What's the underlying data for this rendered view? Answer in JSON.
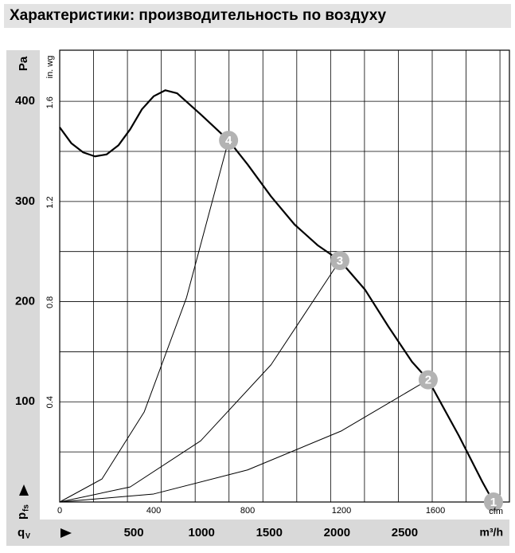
{
  "chart_data": {
    "type": "line",
    "title": "Характеристики: производительность по воздуху",
    "y_label": "Pa",
    "y2_label": "in. wg",
    "y_symbol": "p",
    "y_symbol_sub": "fs",
    "x_symbol": "q",
    "x_symbol_sub": "V",
    "x_label": "cfm",
    "x2_label": "m³/h",
    "xlim": [
      0,
      1915
    ],
    "xticks": [
      0,
      400,
      800,
      1200,
      1600
    ],
    "x2lim": [
      0,
      3320
    ],
    "x2ticks": [
      500,
      1000,
      1500,
      2000,
      2500
    ],
    "x2grid": [
      250,
      500,
      750,
      1000,
      1250,
      1500,
      1750,
      2000,
      2250,
      2500,
      2750,
      3000,
      3250
    ],
    "ylim": [
      0,
      451
    ],
    "yticks": [
      100,
      200,
      300,
      400
    ],
    "ygrid": [
      50,
      100,
      150,
      200,
      250,
      300,
      350,
      400
    ],
    "y2lim": [
      0,
      1.81
    ],
    "y2ticks": [
      0.4,
      0.8,
      1.2,
      1.6
    ],
    "series": [
      {
        "color": "#000000",
        "width": 2.2,
        "x": [
          0,
          50,
          100,
          150,
          200,
          250,
          300,
          350,
          400,
          450,
          500,
          600,
          719,
          800,
          900,
          1000,
          1100,
          1193,
          1300,
          1400,
          1500,
          1569,
          1700,
          1800,
          1847
        ],
        "values": [
          374,
          358,
          349,
          345,
          347,
          356,
          372,
          392,
          405,
          411,
          408,
          387,
          361,
          337,
          305,
          277,
          256,
          241,
          212,
          175,
          140,
          122,
          66,
          20,
          0
        ]
      },
      {
        "color": "#000000",
        "width": 1,
        "x": [
          0,
          180,
          360,
          540,
          719
        ],
        "values": [
          0,
          23,
          90,
          204,
          361
        ]
      },
      {
        "color": "#000000",
        "width": 1,
        "x": [
          0,
          300,
          600,
          900,
          1193
        ],
        "values": [
          0,
          15,
          61,
          137,
          241
        ]
      },
      {
        "color": "#000000",
        "width": 1,
        "x": [
          0,
          400,
          800,
          1200,
          1569
        ],
        "values": [
          0,
          8,
          32,
          71,
          122
        ]
      }
    ],
    "points": [
      {
        "label": "1",
        "x": 1847,
        "y": 0
      },
      {
        "label": "2",
        "x": 1569,
        "y": 122
      },
      {
        "label": "3",
        "x": 1193,
        "y": 241
      },
      {
        "label": "4",
        "x": 719,
        "y": 361
      }
    ]
  }
}
